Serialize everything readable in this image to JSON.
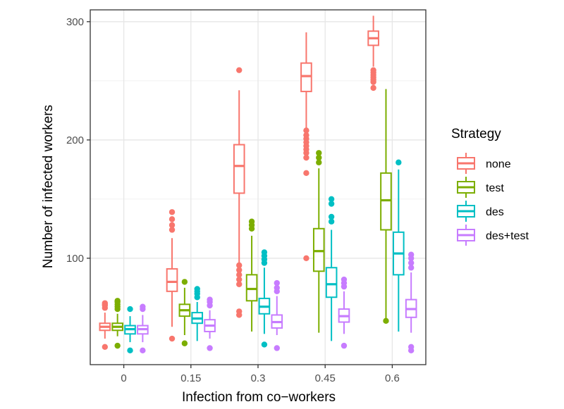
{
  "chart_data": {
    "type": "boxplot",
    "xlabel": "Infection from co−workers",
    "ylabel": "Number of infected workers",
    "categories": [
      "0",
      "0.15",
      "0.3",
      "0.45",
      "0.6"
    ],
    "ylim": [
      10,
      310
    ],
    "yticks": [
      100,
      200,
      300
    ],
    "grid": true,
    "legend": {
      "title": "Strategy",
      "position": "right"
    },
    "series": [
      {
        "name": "none",
        "color": "#F8766D",
        "boxes": [
          {
            "whisker_low": 32,
            "q1": 39,
            "median": 42,
            "q3": 45,
            "whisker_high": 54,
            "outliers": [
              58,
              60,
              61,
              62,
              25
            ]
          },
          {
            "whisker_low": 42,
            "q1": 72,
            "median": 80,
            "q3": 91,
            "whisker_high": 117,
            "outliers": [
              124,
              128,
              133,
              139,
              32
            ]
          },
          {
            "whisker_low": 96,
            "q1": 155,
            "median": 178,
            "q3": 196,
            "whisker_high": 242,
            "outliers": [
              259,
              94,
              90,
              86,
              82,
              78,
              55,
              52
            ]
          },
          {
            "whisker_low": 210,
            "q1": 241,
            "median": 254,
            "q3": 265,
            "whisker_high": 291,
            "outliers": [
              208,
              204,
              201,
              198,
              195,
              192,
              189,
              185,
              172,
              100
            ]
          },
          {
            "whisker_low": 262,
            "q1": 280,
            "median": 286,
            "q3": 292,
            "whisker_high": 305,
            "outliers": [
              259,
              257,
              255,
              253,
              251,
              249,
              244
            ]
          }
        ]
      },
      {
        "name": "test",
        "color": "#7CAE00",
        "boxes": [
          {
            "whisker_low": 34,
            "q1": 39,
            "median": 42,
            "q3": 45,
            "whisker_high": 53,
            "outliers": [
              57,
              59,
              61,
              63,
              64,
              26
            ]
          },
          {
            "whisker_low": 35,
            "q1": 51,
            "median": 56,
            "q3": 61,
            "whisker_high": 75,
            "outliers": [
              80,
              28
            ]
          },
          {
            "whisker_low": 38,
            "q1": 64,
            "median": 74,
            "q3": 86,
            "whisker_high": 119,
            "outliers": [
              125,
              128,
              131
            ]
          },
          {
            "whisker_low": 37,
            "q1": 89,
            "median": 106,
            "q3": 125,
            "whisker_high": 176,
            "outliers": [
              181,
              185,
              189
            ]
          },
          {
            "whisker_low": 47,
            "q1": 124,
            "median": 149,
            "q3": 172,
            "whisker_high": 243,
            "outliers": [
              47
            ]
          }
        ]
      },
      {
        "name": "des",
        "color": "#00BFC4",
        "boxes": [
          {
            "whisker_low": 29,
            "q1": 36,
            "median": 40,
            "q3": 43,
            "whisker_high": 51,
            "outliers": [
              57,
              22
            ]
          },
          {
            "whisker_low": 30,
            "q1": 45,
            "median": 49,
            "q3": 54,
            "whisker_high": 63,
            "outliers": [
              67,
              70,
              72,
              74
            ]
          },
          {
            "whisker_low": 36,
            "q1": 53,
            "median": 59,
            "q3": 66,
            "whisker_high": 92,
            "outliers": [
              96,
              99,
              102,
              105,
              27
            ]
          },
          {
            "whisker_low": 30,
            "q1": 67,
            "median": 78,
            "q3": 92,
            "whisker_high": 124,
            "outliers": [
              131,
              135,
              146,
              150
            ]
          },
          {
            "whisker_low": 38,
            "q1": 86,
            "median": 104,
            "q3": 122,
            "whisker_high": 175,
            "outliers": [
              181
            ]
          }
        ]
      },
      {
        "name": "des+test",
        "color": "#C77CFF",
        "boxes": [
          {
            "whisker_low": 29,
            "q1": 36,
            "median": 40,
            "q3": 43,
            "whisker_high": 52,
            "outliers": [
              57,
              59,
              22
            ]
          },
          {
            "whisker_low": 32,
            "q1": 38,
            "median": 43,
            "q3": 48,
            "whisker_high": 56,
            "outliers": [
              60,
              63,
              65,
              24
            ]
          },
          {
            "whisker_low": 35,
            "q1": 41,
            "median": 46,
            "q3": 52,
            "whisker_high": 68,
            "outliers": [
              72,
              75,
              79,
              24
            ]
          },
          {
            "whisker_low": 36,
            "q1": 46,
            "median": 51,
            "q3": 57,
            "whisker_high": 72,
            "outliers": [
              76,
              79,
              82,
              26
            ]
          },
          {
            "whisker_low": 37,
            "q1": 50,
            "median": 57,
            "q3": 65,
            "whisker_high": 88,
            "outliers": [
              92,
              96,
              100,
              103,
              25,
              22
            ]
          }
        ]
      }
    ]
  }
}
